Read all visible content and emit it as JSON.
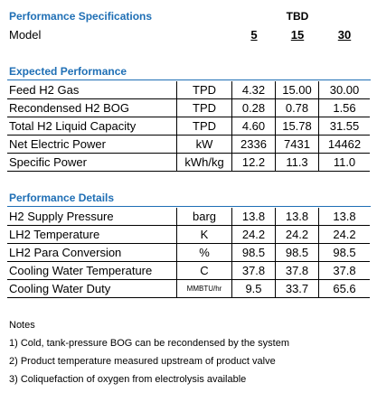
{
  "header": {
    "title": "Performance Specifications",
    "tbd": "TBD",
    "model_label": "Model",
    "models": [
      "5",
      "15",
      "30"
    ]
  },
  "sections": [
    {
      "title": "Expected Performance",
      "rows": [
        {
          "label": "Feed H2 Gas",
          "unit": "TPD",
          "values": [
            "4.32",
            "15.00",
            "30.00"
          ]
        },
        {
          "label": "Recondensed H2 BOG",
          "unit": "TPD",
          "values": [
            "0.28",
            "0.78",
            "1.56"
          ]
        },
        {
          "label": "Total H2 Liquid Capacity",
          "unit": "TPD",
          "values": [
            "4.60",
            "15.78",
            "31.55"
          ]
        },
        {
          "label": "Net Electric Power",
          "unit": "kW",
          "values": [
            "2336",
            "7431",
            "14462"
          ]
        },
        {
          "label": "Specific Power",
          "unit": "kWh/kg",
          "values": [
            "12.2",
            "11.3",
            "11.0"
          ]
        }
      ]
    },
    {
      "title": "Performance Details",
      "rows": [
        {
          "label": "H2 Supply Pressure",
          "unit": "barg",
          "values": [
            "13.8",
            "13.8",
            "13.8"
          ]
        },
        {
          "label": "LH2 Temperature",
          "unit": "K",
          "values": [
            "24.2",
            "24.2",
            "24.2"
          ]
        },
        {
          "label": "LH2 Para Conversion",
          "unit": "%",
          "values": [
            "98.5",
            "98.5",
            "98.5"
          ]
        },
        {
          "label": "Cooling Water Temperature",
          "unit": "C",
          "values": [
            "37.8",
            "37.8",
            "37.8"
          ]
        },
        {
          "label": "Cooling Water Duty",
          "unit": "MMBTU/hr",
          "values": [
            "9.5",
            "33.7",
            "65.6"
          ]
        }
      ]
    }
  ],
  "notes": {
    "title": "Notes",
    "items": [
      "1) Cold, tank-pressure BOG can be recondensed by the system",
      "2) Product temperature measured upstream of product valve",
      "3) Coliquefaction of oxygen from electrolysis available"
    ]
  }
}
